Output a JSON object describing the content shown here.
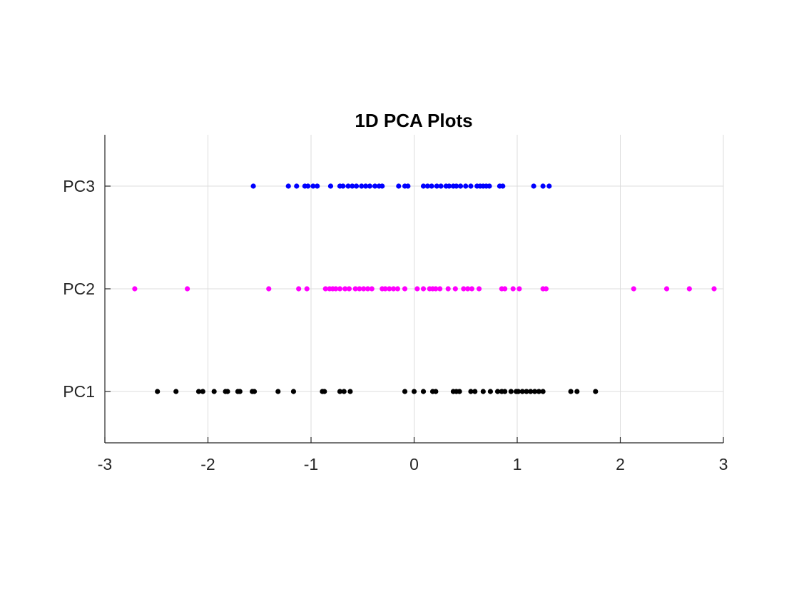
{
  "chart_data": {
    "type": "scatter",
    "title": "1D PCA Plots",
    "xlabel": "",
    "ylabel": "",
    "xlim": [
      -3,
      3
    ],
    "x_ticks": [
      -3,
      -2,
      -1,
      0,
      1,
      2,
      3
    ],
    "categories": [
      "PC1",
      "PC2",
      "PC3"
    ],
    "grid": true,
    "legend": "none",
    "series": [
      {
        "category": "PC1",
        "color": "#000000",
        "values": [
          -2.49,
          -2.31,
          -2.09,
          -2.05,
          -1.94,
          -1.83,
          -1.81,
          -1.71,
          -1.69,
          -1.57,
          -1.55,
          -1.32,
          -1.17,
          -0.89,
          -0.87,
          -0.72,
          -0.68,
          -0.62,
          -0.09,
          0.0,
          0.09,
          0.18,
          0.21,
          0.38,
          0.41,
          0.44,
          0.55,
          0.59,
          0.67,
          0.74,
          0.81,
          0.85,
          0.88,
          0.94,
          0.99,
          1.01,
          1.05,
          1.09,
          1.13,
          1.17,
          1.21,
          1.25,
          1.52,
          1.58,
          1.76
        ]
      },
      {
        "category": "PC2",
        "color": "#ff00ff",
        "values": [
          -2.71,
          -2.2,
          -1.41,
          -1.12,
          -1.04,
          -0.86,
          -0.82,
          -0.79,
          -0.76,
          -0.72,
          -0.67,
          -0.63,
          -0.57,
          -0.53,
          -0.49,
          -0.45,
          -0.41,
          -0.31,
          -0.28,
          -0.24,
          -0.2,
          -0.16,
          -0.09,
          0.03,
          0.09,
          0.15,
          0.18,
          0.21,
          0.25,
          0.33,
          0.4,
          0.48,
          0.52,
          0.56,
          0.63,
          0.85,
          0.88,
          0.96,
          1.02,
          1.25,
          1.28,
          2.13,
          2.45,
          2.67,
          2.91
        ]
      },
      {
        "category": "PC3",
        "color": "#0000ff",
        "values": [
          -1.56,
          -1.22,
          -1.14,
          -1.06,
          -1.03,
          -0.98,
          -0.94,
          -0.81,
          -0.72,
          -0.69,
          -0.64,
          -0.6,
          -0.56,
          -0.51,
          -0.47,
          -0.43,
          -0.38,
          -0.34,
          -0.31,
          -0.15,
          -0.09,
          -0.06,
          0.09,
          0.13,
          0.17,
          0.22,
          0.26,
          0.31,
          0.34,
          0.38,
          0.41,
          0.45,
          0.5,
          0.55,
          0.61,
          0.64,
          0.67,
          0.7,
          0.73,
          0.83,
          0.86,
          1.16,
          1.25,
          1.31
        ]
      }
    ]
  }
}
